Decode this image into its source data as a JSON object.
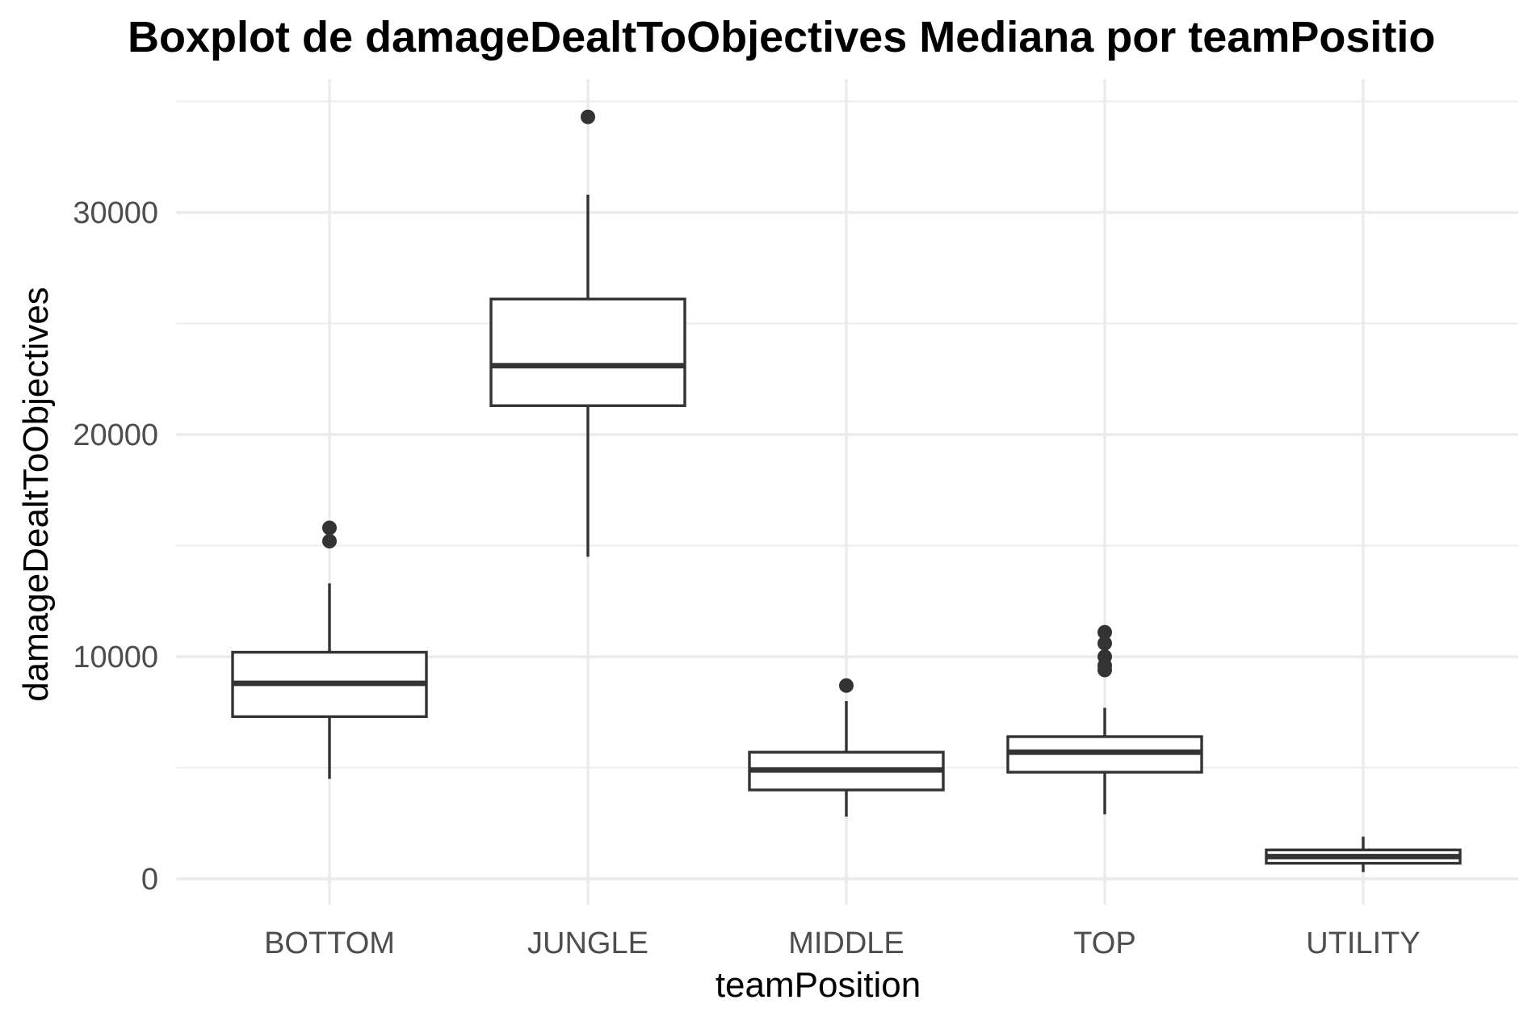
{
  "chart_data": {
    "type": "box",
    "title": "Boxplot de damageDealtToObjectives Mediana por teamPositio",
    "xlabel": "teamPosition",
    "ylabel": "damageDealtToObjectives",
    "ylim": [
      -1200,
      36000
    ],
    "yticks": [
      0,
      10000,
      20000,
      30000
    ],
    "ytick_labels": [
      "0",
      "10000",
      "20000",
      "30000"
    ],
    "y_minor_ticks": [
      5000,
      15000,
      25000,
      35000
    ],
    "grid": true,
    "colors": {
      "box": "#333333",
      "grid": "#ebebeb",
      "outlier": "#333333",
      "tick_text": "#4d4d4d"
    },
    "categories": [
      "BOTTOM",
      "JUNGLE",
      "MIDDLE",
      "TOP",
      "UTILITY"
    ],
    "boxes": [
      {
        "category": "BOTTOM",
        "whisker_low": 4500,
        "q1": 7300,
        "median": 8800,
        "q3": 10200,
        "whisker_high": 13300,
        "outliers": [
          15200,
          15800
        ]
      },
      {
        "category": "JUNGLE",
        "whisker_low": 14500,
        "q1": 21300,
        "median": 23100,
        "q3": 26100,
        "whisker_high": 30800,
        "outliers": [
          34300
        ]
      },
      {
        "category": "MIDDLE",
        "whisker_low": 2800,
        "q1": 4000,
        "median": 4900,
        "q3": 5700,
        "whisker_high": 8000,
        "outliers": [
          8700
        ]
      },
      {
        "category": "TOP",
        "whisker_low": 2900,
        "q1": 4800,
        "median": 5700,
        "q3": 6400,
        "whisker_high": 7700,
        "outliers": [
          9400,
          9600,
          10000,
          10600,
          11100
        ]
      },
      {
        "category": "UTILITY",
        "whisker_low": 300,
        "q1": 700,
        "median": 1000,
        "q3": 1300,
        "whisker_high": 1900,
        "outliers": []
      }
    ]
  }
}
